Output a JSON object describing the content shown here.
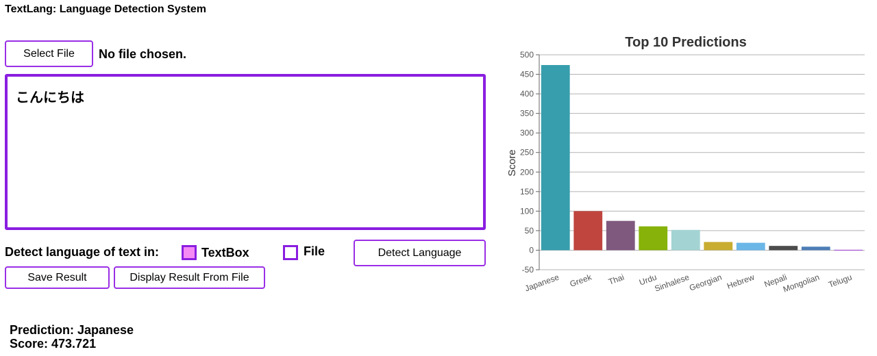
{
  "app": {
    "title": "TextLang: Language Detection System"
  },
  "file_input": {
    "button_label": "Select File",
    "status": "No file chosen."
  },
  "textbox": {
    "value": "こんにちは"
  },
  "detect": {
    "label": "Detect language of text in:",
    "textbox_option": {
      "label": "TextBox",
      "checked": true
    },
    "file_option": {
      "label": "File",
      "checked": false
    },
    "button_label": "Detect Language"
  },
  "actions": {
    "save_label": "Save Result",
    "display_label": "Display Result From File"
  },
  "result": {
    "prediction": "Prediction: Japanese",
    "score": "Score: 473.721"
  },
  "chart_data": {
    "type": "bar",
    "title": "Top 10 Predictions",
    "ylabel": "Score",
    "xlabel": "",
    "ylim": [
      -50,
      500
    ],
    "yticks": [
      500,
      450,
      400,
      350,
      300,
      250,
      200,
      150,
      100,
      50,
      0,
      -50
    ],
    "grid": true,
    "categories": [
      "Japanese",
      "Greek",
      "Thai",
      "Urdu",
      "Sinhalese",
      "Georgian",
      "Hebrew",
      "Nepali",
      "Mongolian",
      "Telugu"
    ],
    "values": [
      473.721,
      100,
      75,
      61,
      52,
      21,
      19,
      11,
      9,
      1
    ],
    "colors": [
      "#379ead",
      "#c0453f",
      "#80597f",
      "#86b20a",
      "#a4d3d3",
      "#c8ad30",
      "#6ab6e7",
      "#4c4c4c",
      "#4d7db6",
      "#9a35d1"
    ]
  }
}
